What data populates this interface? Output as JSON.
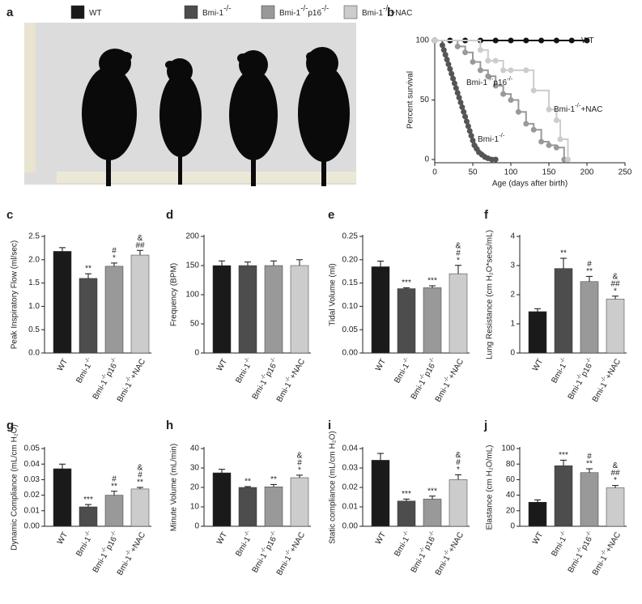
{
  "panel_labels": [
    "a",
    "b",
    "c",
    "d",
    "e",
    "f",
    "g",
    "h",
    "i",
    "j"
  ],
  "legend": {
    "items": [
      {
        "parts": [
          "WT"
        ],
        "color": "#1a1a1a"
      },
      {
        "parts": [
          "Bmi-1",
          "-/-"
        ],
        "color": "#4d4d4d"
      },
      {
        "parts": [
          "Bmi-1",
          "-/-",
          "p16",
          "-/-"
        ],
        "color": "#999999"
      },
      {
        "parts": [
          "Bmi-1",
          "-/-",
          "+NAC"
        ],
        "color": "#cccccc"
      }
    ]
  },
  "chart_data": [
    {
      "type": "line",
      "xlabel": "Age (days after birth)",
      "ylabel": "Percent survival",
      "xlim": [
        0,
        250
      ],
      "ylim": [
        0,
        100
      ],
      "xticks": [
        0,
        50,
        100,
        150,
        200,
        250
      ],
      "yticks": [
        0,
        50,
        100
      ],
      "step": true,
      "series": [
        {
          "name": [
            "WT"
          ],
          "color": "#111111",
          "x": [
            0,
            20,
            40,
            60,
            80,
            100,
            120,
            140,
            160,
            180,
            200
          ],
          "values": [
            100,
            100,
            100,
            100,
            100,
            100,
            100,
            100,
            100,
            100,
            100
          ]
        },
        {
          "name": [
            "Bmi-1",
            "-/-"
          ],
          "color": "#555555",
          "x": [
            0,
            10,
            12,
            14,
            16,
            18,
            20,
            22,
            24,
            26,
            28,
            30,
            32,
            34,
            36,
            38,
            40,
            42,
            44,
            46,
            48,
            50,
            52,
            55,
            58,
            62,
            66,
            70,
            75,
            80
          ],
          "values": [
            100,
            96,
            92,
            88,
            84,
            80,
            76,
            72,
            68,
            64,
            60,
            56,
            52,
            48,
            44,
            40,
            36,
            32,
            28,
            24,
            20,
            16,
            12,
            9,
            6,
            4,
            2,
            1,
            0,
            0
          ]
        },
        {
          "name": [
            "Bmi-1",
            "-/-",
            "p16",
            "-/-"
          ],
          "color": "#999999",
          "x": [
            0,
            30,
            40,
            50,
            60,
            70,
            80,
            90,
            100,
            110,
            120,
            130,
            140,
            150,
            160,
            170
          ],
          "values": [
            100,
            95,
            90,
            82,
            75,
            70,
            62,
            55,
            50,
            40,
            30,
            25,
            15,
            12,
            10,
            0
          ]
        },
        {
          "name": [
            "Bmi-1",
            "-/-",
            "+NAC"
          ],
          "color": "#cccccc",
          "x": [
            0,
            60,
            70,
            80,
            90,
            100,
            120,
            130,
            150,
            160,
            165,
            175
          ],
          "values": [
            100,
            92,
            83,
            83,
            75,
            75,
            75,
            58,
            42,
            33,
            17,
            0
          ]
        }
      ]
    },
    {
      "type": "bar",
      "ylabel": "Peak Inspiratory Flow (ml/sec)",
      "ylim": [
        0,
        2.5
      ],
      "yticks": [
        {
          "value": 0,
          "label": "0.0"
        },
        0.5,
        {
          "value": 1,
          "label": "1.0"
        },
        1.5,
        {
          "value": 2,
          "label": "2.0"
        },
        2.5
      ],
      "categories": [
        [
          "WT"
        ],
        [
          "Bmi-1",
          "-/-"
        ],
        [
          "Bmi-1",
          "-/-",
          "p16",
          "-/-"
        ],
        [
          "Bmi-1",
          "-/-",
          "+NAC"
        ]
      ],
      "colors": [
        "#1a1a1a",
        "#4d4d4d",
        "#999999",
        "#cccccc"
      ],
      "values": [
        2.18,
        1.6,
        1.86,
        2.1
      ],
      "errors": [
        0.08,
        0.1,
        0.07,
        0.1
      ],
      "annotations": [
        [],
        [
          "**"
        ],
        [
          "#",
          "*"
        ],
        [
          "&",
          "##"
        ]
      ]
    },
    {
      "type": "bar",
      "ylabel": "Frequency (BPM)",
      "ylim": [
        0,
        200
      ],
      "yticks": [
        0,
        50,
        100,
        150,
        200
      ],
      "categories": [
        [
          "WT"
        ],
        [
          "Bmi-1",
          "-/-"
        ],
        [
          "Bmi-1",
          "-/-",
          "p16",
          "-/-"
        ],
        [
          "Bmi-1",
          "-/-",
          "+NAC"
        ]
      ],
      "colors": [
        "#1a1a1a",
        "#4d4d4d",
        "#999999",
        "#cccccc"
      ],
      "values": [
        150,
        150,
        150,
        150
      ],
      "errors": [
        8,
        6,
        8,
        10
      ],
      "annotations": [
        [],
        [],
        [],
        []
      ]
    },
    {
      "type": "bar",
      "ylabel": "Tidal Volume (ml)",
      "ylim": [
        0,
        0.25
      ],
      "yticks": [
        {
          "value": 0,
          "label": "0.00"
        },
        {
          "value": 0.05,
          "label": "0.05"
        },
        {
          "value": 0.1,
          "label": "0.10"
        },
        {
          "value": 0.15,
          "label": "0.15"
        },
        {
          "value": 0.2,
          "label": "0.20"
        },
        {
          "value": 0.25,
          "label": "0.25"
        }
      ],
      "categories": [
        [
          "WT"
        ],
        [
          "Bmi-1",
          "-/-"
        ],
        [
          "Bmi-1",
          "-/-",
          "p16",
          "-/-"
        ],
        [
          "Bmi-1",
          "-/-",
          "+NAC"
        ]
      ],
      "colors": [
        "#1a1a1a",
        "#4d4d4d",
        "#999999",
        "#cccccc"
      ],
      "values": [
        0.185,
        0.138,
        0.14,
        0.17
      ],
      "errors": [
        0.012,
        0.002,
        0.004,
        0.018
      ],
      "annotations": [
        [],
        [
          "***"
        ],
        [
          "***"
        ],
        [
          "&",
          "#",
          "*"
        ]
      ]
    },
    {
      "type": "bar",
      "ylabel": "Lung Resistance (cm H₂O*secs/mL)",
      "ylim": [
        0,
        4
      ],
      "yticks": [
        0,
        1,
        2,
        3,
        4
      ],
      "categories": [
        [
          "WT"
        ],
        [
          "Bmi-1",
          "-/-"
        ],
        [
          "Bmi-1",
          "-/-",
          "p16",
          "-/-"
        ],
        [
          "Bmi-1",
          "-/-",
          "+NAC"
        ]
      ],
      "colors": [
        "#1a1a1a",
        "#4d4d4d",
        "#999999",
        "#cccccc"
      ],
      "values": [
        1.42,
        2.9,
        2.45,
        1.85
      ],
      "errors": [
        0.1,
        0.35,
        0.18,
        0.1
      ],
      "annotations": [
        [],
        [
          "**"
        ],
        [
          "#",
          "**"
        ],
        [
          "&",
          "##",
          "*"
        ]
      ]
    },
    {
      "type": "bar",
      "ylabel": "Dynamic Compliance (mL/cm H₂O)",
      "ylim": [
        0,
        0.05
      ],
      "yticks": [
        {
          "value": 0,
          "label": "0.00"
        },
        {
          "value": 0.01,
          "label": "0.01"
        },
        {
          "value": 0.02,
          "label": "0.02"
        },
        {
          "value": 0.03,
          "label": "0.03"
        },
        {
          "value": 0.04,
          "label": "0.04"
        },
        {
          "value": 0.05,
          "label": "0.05"
        }
      ],
      "categories": [
        [
          "WT"
        ],
        [
          "Bmi-1",
          "-/-"
        ],
        [
          "Bmi-1",
          "-/-",
          "p16",
          "-/-"
        ],
        [
          "Bmi-1",
          "-/-",
          "+NAC"
        ]
      ],
      "colors": [
        "#1a1a1a",
        "#4d4d4d",
        "#999999",
        "#cccccc"
      ],
      "values": [
        0.037,
        0.0125,
        0.02,
        0.024
      ],
      "errors": [
        0.003,
        0.0015,
        0.0025,
        0.001
      ],
      "annotations": [
        [],
        [
          "***"
        ],
        [
          "#",
          "**"
        ],
        [
          "&",
          "#",
          "**"
        ]
      ]
    },
    {
      "type": "bar",
      "ylabel": "Minute Volume (mL/min)",
      "ylim": [
        0,
        40
      ],
      "yticks": [
        0,
        10,
        20,
        30,
        40
      ],
      "categories": [
        [
          "WT"
        ],
        [
          "Bmi-1",
          "-/-"
        ],
        [
          "Bmi-1",
          "-/-",
          "p16",
          "-/-"
        ],
        [
          "Bmi-1",
          "-/-",
          "+NAC"
        ]
      ],
      "colors": [
        "#1a1a1a",
        "#4d4d4d",
        "#999999",
        "#cccccc"
      ],
      "values": [
        27.5,
        20,
        20.3,
        25
      ],
      "errors": [
        1.8,
        0.4,
        1.2,
        1.3
      ],
      "annotations": [
        [],
        [
          "**"
        ],
        [
          "**"
        ],
        [
          "&",
          "#",
          "*"
        ]
      ]
    },
    {
      "type": "bar",
      "ylabel": "Static compliance (mL/cm H₂O)",
      "ylim": [
        0,
        0.04
      ],
      "yticks": [
        {
          "value": 0,
          "label": "0.00"
        },
        {
          "value": 0.01,
          "label": "0.01"
        },
        {
          "value": 0.02,
          "label": "0.02"
        },
        {
          "value": 0.03,
          "label": "0.03"
        },
        {
          "value": 0.04,
          "label": "0.04"
        }
      ],
      "categories": [
        [
          "WT"
        ],
        [
          "Bmi-1",
          "-/-"
        ],
        [
          "Bmi-1",
          "-/-",
          "p16",
          "-/-"
        ],
        [
          "Bmi-1",
          "-/-",
          "+NAC"
        ]
      ],
      "colors": [
        "#1a1a1a",
        "#4d4d4d",
        "#999999",
        "#cccccc"
      ],
      "values": [
        0.034,
        0.013,
        0.014,
        0.024
      ],
      "errors": [
        0.0035,
        0.001,
        0.0015,
        0.0025
      ],
      "annotations": [
        [],
        [
          "***"
        ],
        [
          "***"
        ],
        [
          "&",
          "#",
          "*"
        ]
      ]
    },
    {
      "type": "bar",
      "ylabel": "Elastance (cm H₂O/mL)",
      "ylim": [
        0,
        100
      ],
      "yticks": [
        0,
        20,
        40,
        60,
        80,
        100
      ],
      "categories": [
        [
          "WT"
        ],
        [
          "Bmi-1",
          "-/-"
        ],
        [
          "Bmi-1",
          "-/-",
          "p16",
          "-/-"
        ],
        [
          "Bmi-1",
          "-/-",
          "+NAC"
        ]
      ],
      "colors": [
        "#1a1a1a",
        "#4d4d4d",
        "#999999",
        "#cccccc"
      ],
      "values": [
        31,
        78,
        69,
        49.5
      ],
      "errors": [
        3,
        7,
        5,
        3
      ],
      "annotations": [
        [],
        [
          "***"
        ],
        [
          "#",
          "**"
        ],
        [
          "&",
          "##",
          "*"
        ]
      ]
    }
  ]
}
